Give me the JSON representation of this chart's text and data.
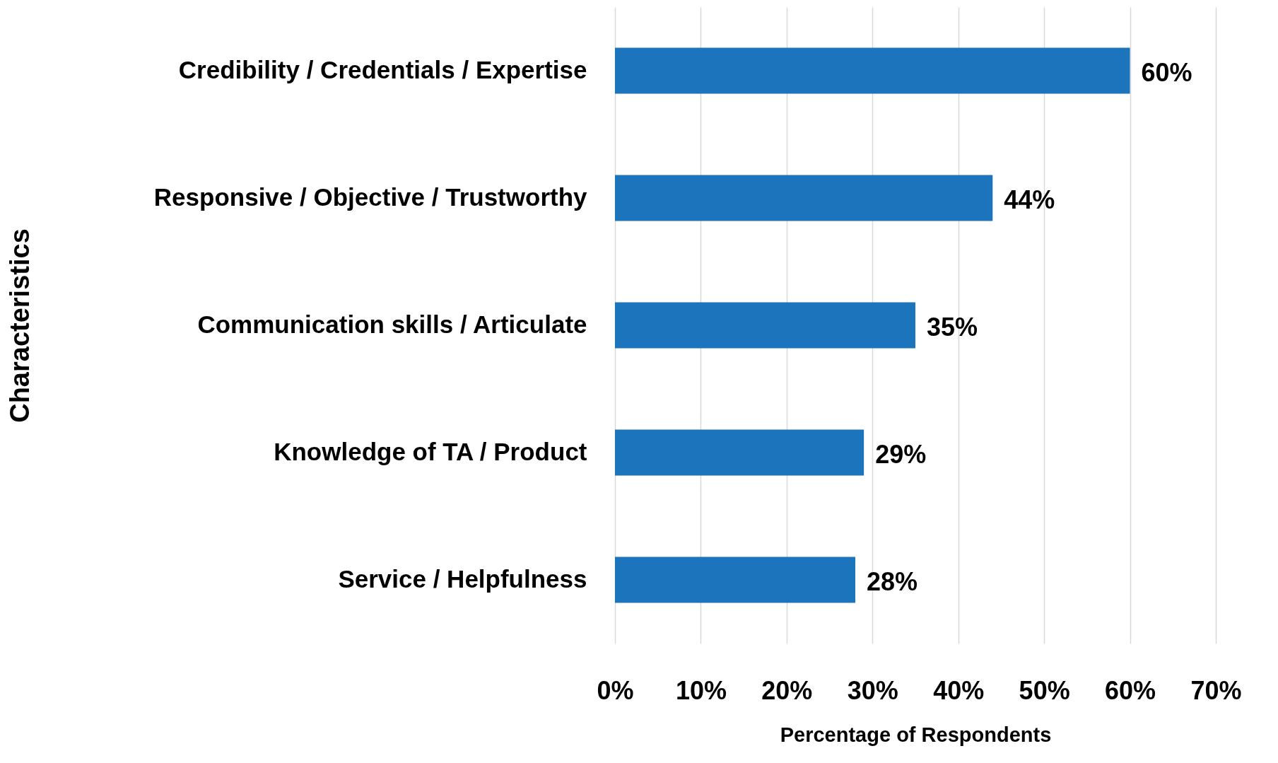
{
  "chart_data": {
    "type": "bar",
    "orientation": "horizontal",
    "xlabel": "Percentage of Respondents",
    "ylabel": "Characteristics",
    "categories": [
      "Credibility / Credentials / Expertise",
      "Responsive / Objective / Trustworthy",
      "Communication skills / Articulate",
      "Knowledge of TA / Product",
      "Service / Helpfulness"
    ],
    "values": [
      60,
      44,
      35,
      29,
      28
    ],
    "value_labels": [
      "60%",
      "44%",
      "35%",
      "29%",
      "28%"
    ],
    "color": "#1c75bc",
    "xlim": [
      0,
      70
    ],
    "xticks": [
      {
        "value": 0,
        "label": "0%"
      },
      {
        "value": 10,
        "label": "10%"
      },
      {
        "value": 20,
        "label": "20%"
      },
      {
        "value": 30,
        "label": "30%"
      },
      {
        "value": 40,
        "label": "40%"
      },
      {
        "value": 50,
        "label": "50%"
      },
      {
        "value": 60,
        "label": "60%"
      },
      {
        "value": 70,
        "label": "70%"
      }
    ],
    "grid": "x"
  }
}
